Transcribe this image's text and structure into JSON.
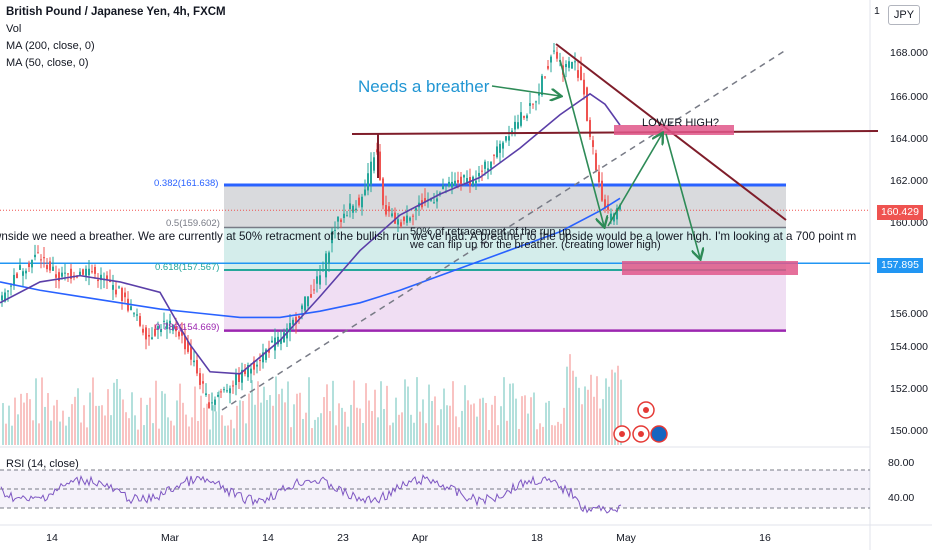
{
  "legend": {
    "title": "British Pound / Japanese Yen, 4h, FXCM",
    "vol": "Vol",
    "ma200": "MA (200, close, 0)",
    "ma50": "MA (50, close, 0)",
    "rsi": "RSI (14, close)"
  },
  "currency": "JPY",
  "annotations": {
    "callout": "Needs a breather",
    "lower_high": "LOWER HIGH?",
    "note_long": "wnside we need a breather. We are currently at 50% retracment of the bullish run we've had. A breather to the upside would be a lower high. I'm looking at a 700 point m",
    "note_a": "50% of retracement of the run up",
    "note_b": "we can flip up for the breather. (creating lower high)"
  },
  "fib_labels": {
    "f382": "0.382(161.638)",
    "f5": "0.5(159.602)",
    "f618": "0.618(157.567)",
    "f786": "0.786(154.669)"
  },
  "price_tags": {
    "last": "160.429",
    "blue_line": "157.895"
  },
  "colors": {
    "up": "#26a69a",
    "down": "#ef5350",
    "ma200": "#2962ff",
    "ma50": "#5b3fa8",
    "resistance": "#7f1d2a",
    "fib_blue": "#2962ff",
    "fib_purple": "#9c27b0",
    "pink_box": "#e0578a",
    "arrow": "#2e8b57"
  },
  "chart_data": {
    "type": "line",
    "title": "British Pound / Japanese Yen, 4h, FXCM",
    "price_axis": {
      "ticks": [
        "168.000",
        "166.000",
        "164.000",
        "162.000",
        "160.000",
        "156.000",
        "154.000",
        "152.000",
        "150.000"
      ],
      "top_partial": "1",
      "ylim": [
        149.5,
        169.5
      ]
    },
    "time_axis": {
      "ticks": [
        "14",
        "Mar",
        "14",
        "23",
        "Apr",
        "18",
        "May",
        "16"
      ]
    },
    "rsi_axis": {
      "ticks": [
        "80.00",
        "40.00"
      ]
    },
    "fib_levels": [
      {
        "ratio": 0.382,
        "price": 161.638
      },
      {
        "ratio": 0.5,
        "price": 159.602
      },
      {
        "ratio": 0.618,
        "price": 157.567
      },
      {
        "ratio": 0.786,
        "price": 154.669
      }
    ],
    "last_price": 160.429,
    "horizontal_line_price": 157.895,
    "series": [
      {
        "name": "MA (200, close, 0)",
        "x_index": [
          0,
          40,
          80,
          120,
          160,
          200,
          240,
          280,
          320,
          360,
          400,
          440,
          480,
          520,
          560,
          600,
          620
        ],
        "values": [
          157.0,
          156.6,
          156.3,
          156.0,
          155.7,
          155.5,
          155.3,
          155.3,
          155.6,
          156.0,
          156.6,
          157.3,
          158.0,
          158.7,
          159.4,
          160.4,
          161.0
        ]
      },
      {
        "name": "MA (50, close, 0)",
        "x_index": [
          0,
          40,
          80,
          120,
          160,
          190,
          210,
          240,
          280,
          320,
          360,
          400,
          440,
          480,
          520,
          560,
          590,
          605,
          620
        ],
        "values": [
          156.0,
          157.0,
          157.3,
          157.0,
          156.5,
          154.0,
          152.7,
          152.6,
          154.2,
          156.3,
          158.5,
          160.2,
          161.2,
          162.0,
          163.4,
          165.0,
          166.0,
          165.5,
          164.5
        ]
      }
    ]
  }
}
